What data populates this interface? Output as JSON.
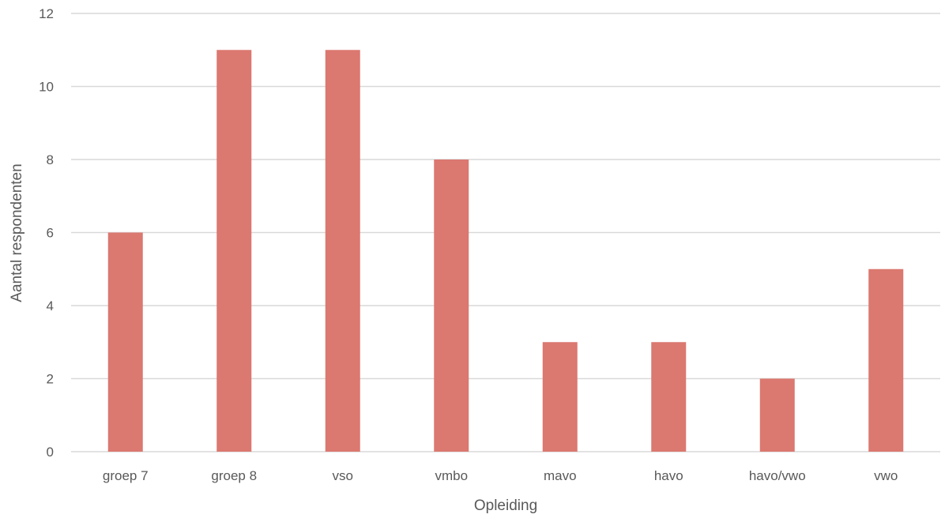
{
  "chart_data": {
    "type": "bar",
    "title": "",
    "xlabel": "Opleiding",
    "ylabel": "Aantal respondenten",
    "categories": [
      "groep 7",
      "groep 8",
      "vso",
      "vmbo",
      "mavo",
      "havo",
      "havo/vwo",
      "vwo"
    ],
    "values": [
      6,
      11,
      11,
      8,
      3,
      3,
      2,
      5
    ],
    "ylim": [
      0,
      12
    ],
    "yticks": [
      0,
      2,
      4,
      6,
      8,
      10,
      12
    ],
    "grid": true,
    "legend": "none",
    "bar_color": "#DB7870",
    "grid_color": "#D9D9D9"
  }
}
